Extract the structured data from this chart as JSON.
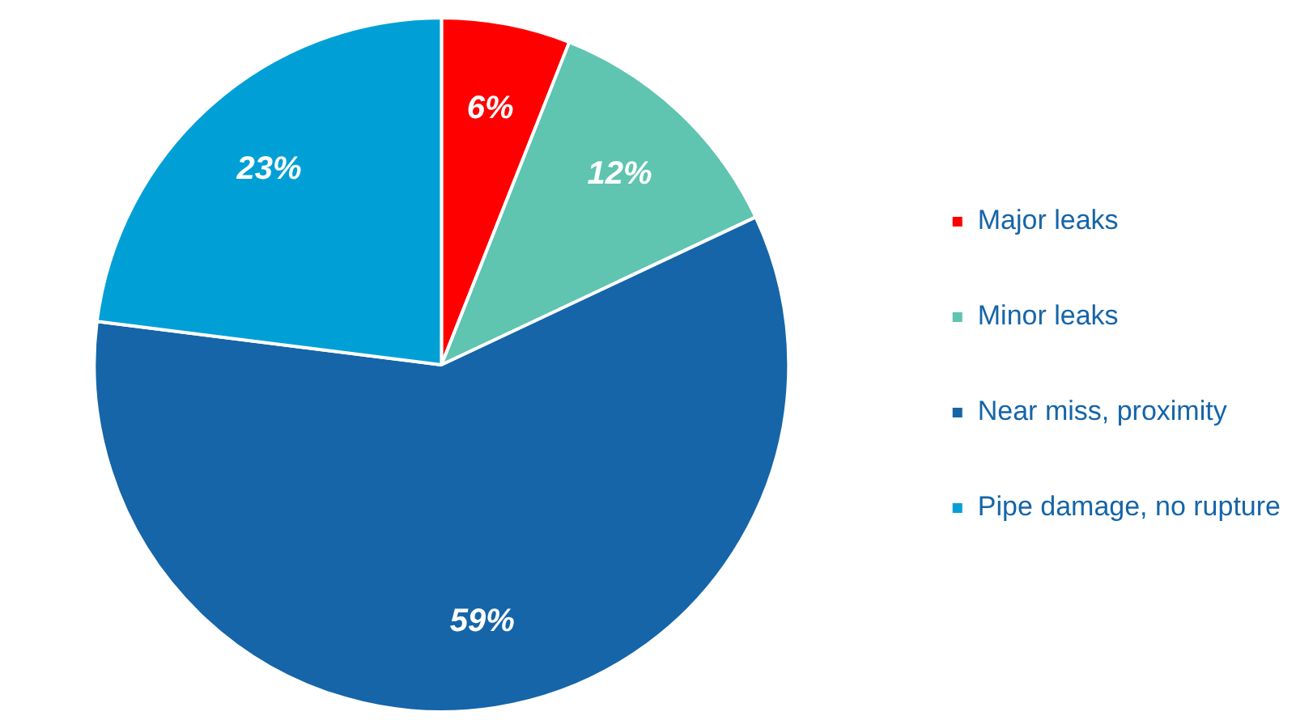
{
  "chart_data": {
    "type": "pie",
    "categories": [
      "Major leaks",
      "Minor leaks",
      "Near miss, proximity",
      "Pipe damage, no rupture"
    ],
    "values": [
      6,
      12,
      59,
      23
    ],
    "colors": [
      "#ff0000",
      "#5fc4b0",
      "#1565a8",
      "#00a0d6"
    ],
    "value_labels": [
      "6%",
      "12%",
      "59%",
      "23%"
    ],
    "legend": "right"
  }
}
